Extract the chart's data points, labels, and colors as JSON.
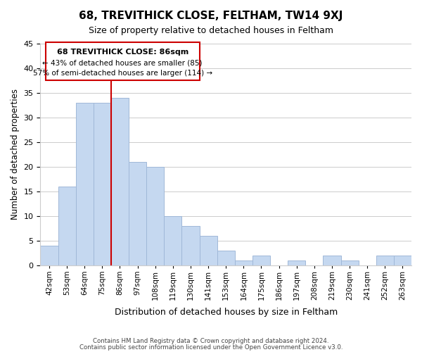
{
  "title": "68, TREVITHICK CLOSE, FELTHAM, TW14 9XJ",
  "subtitle": "Size of property relative to detached houses in Feltham",
  "xlabel": "Distribution of detached houses by size in Feltham",
  "ylabel": "Number of detached properties",
  "bin_labels": [
    "42sqm",
    "53sqm",
    "64sqm",
    "75sqm",
    "86sqm",
    "97sqm",
    "108sqm",
    "119sqm",
    "130sqm",
    "141sqm",
    "153sqm",
    "164sqm",
    "175sqm",
    "186sqm",
    "197sqm",
    "208sqm",
    "219sqm",
    "230sqm",
    "241sqm",
    "252sqm",
    "263sqm"
  ],
  "values": [
    4,
    16,
    33,
    33,
    34,
    21,
    20,
    10,
    8,
    6,
    3,
    1,
    2,
    0,
    1,
    0,
    2,
    1,
    0,
    2,
    2
  ],
  "bar_color": "#c5d8f0",
  "bar_edgecolor": "#a0b8d8",
  "vline_x": 4,
  "vline_color": "#cc0000",
  "ylim": [
    0,
    45
  ],
  "yticks": [
    0,
    5,
    10,
    15,
    20,
    25,
    30,
    35,
    40,
    45
  ],
  "annotation_title": "68 TREVITHICK CLOSE: 86sqm",
  "annotation_line1": "← 43% of detached houses are smaller (85)",
  "annotation_line2": "57% of semi-detached houses are larger (114) →",
  "annotation_box_color": "#ffffff",
  "annotation_box_edgecolor": "#cc0000",
  "footer_line1": "Contains HM Land Registry data © Crown copyright and database right 2024.",
  "footer_line2": "Contains public sector information licensed under the Open Government Licence v3.0."
}
